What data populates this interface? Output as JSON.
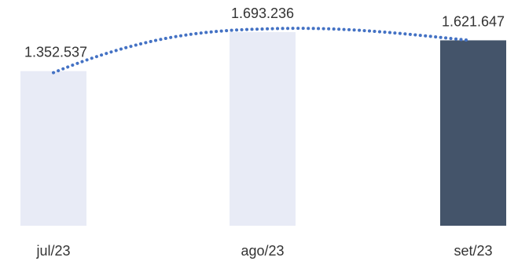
{
  "chart_data": {
    "type": "bar",
    "title": "",
    "xlabel": "",
    "ylabel": "",
    "categories": [
      "jul/23",
      "ago/23",
      "set/23"
    ],
    "series": [
      {
        "values": [
          1352537,
          1693236,
          1621647
        ]
      }
    ],
    "data_labels": [
      "1.352.537",
      "1.693.236",
      "1.621.647"
    ],
    "ylim": [
      0,
      1780000
    ],
    "bar_colors": [
      "#e8ebf6",
      "#e8ebf6",
      "#44546a"
    ],
    "trendline": {
      "style": "dotted",
      "color": "#4472c4"
    },
    "grid": false,
    "legend": "none"
  }
}
